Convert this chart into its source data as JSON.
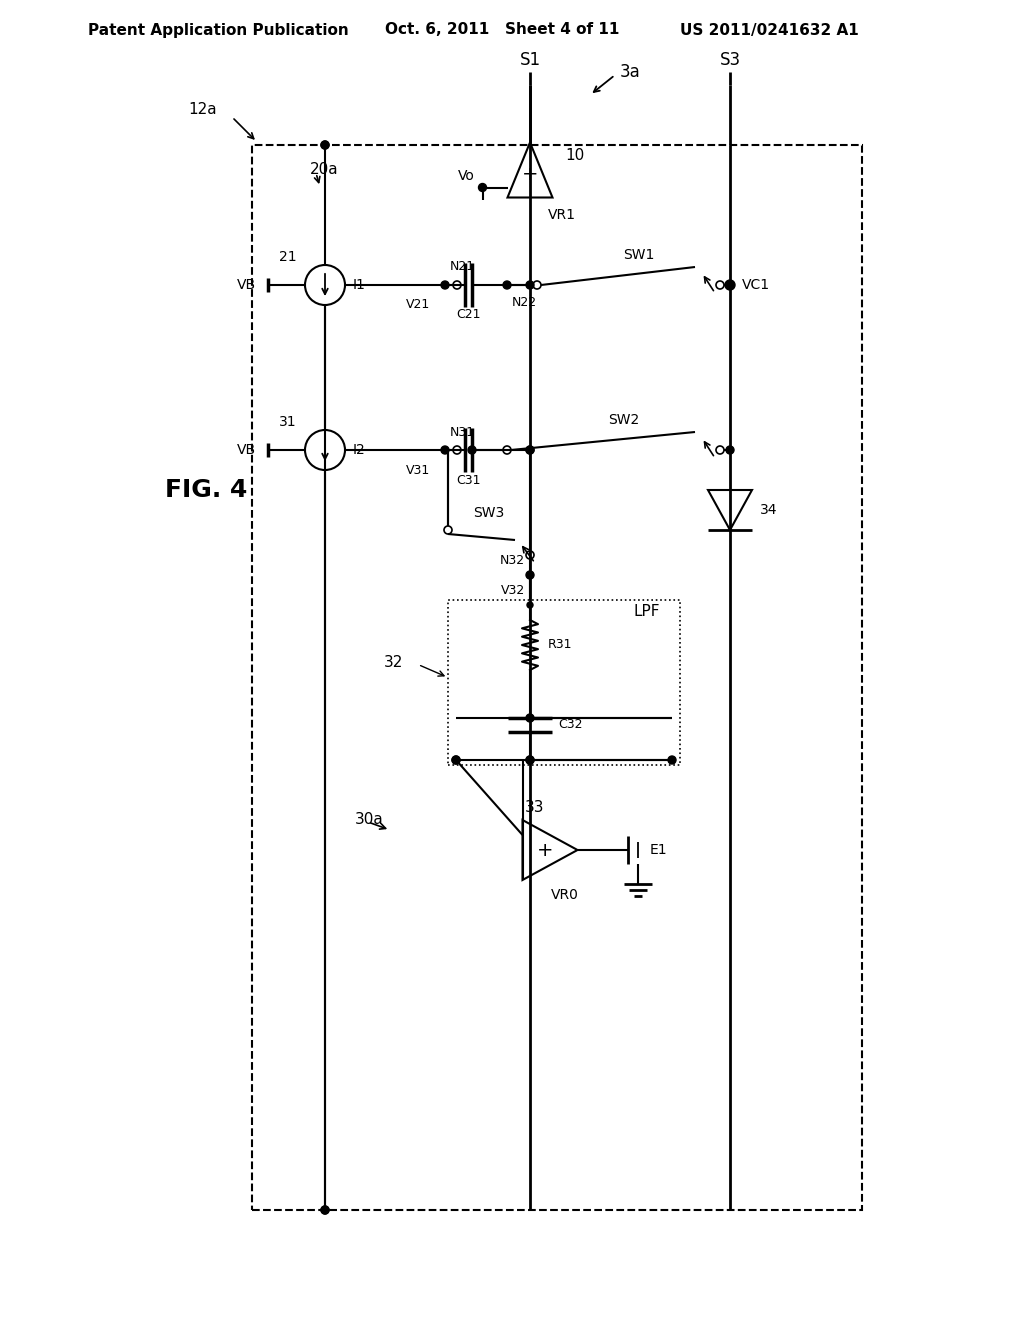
{
  "bg_color": "#ffffff",
  "header_left": "Patent Application Publication",
  "header_mid": "Oct. 6, 2011   Sheet 4 of 11",
  "header_right": "US 2011/0241632 A1",
  "fig_label": "FIG. 4",
  "line_color": "#000000",
  "text_color": "#000000"
}
